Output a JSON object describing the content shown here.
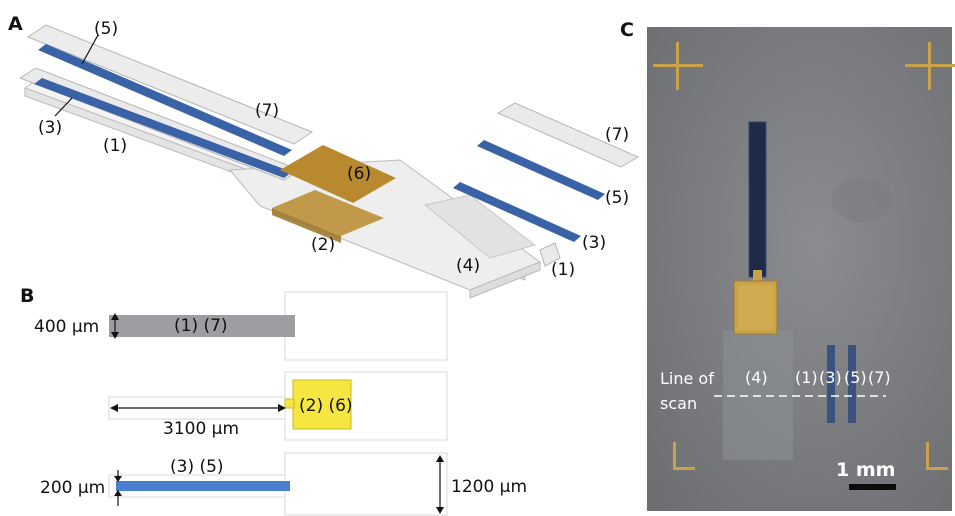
{
  "panels": {
    "a": "A",
    "b": "B",
    "c": "C"
  },
  "panel_a": {
    "labels": {
      "l5": "(5)",
      "l3": "(3)",
      "l7": "(7)",
      "l1": "(1)",
      "l6": "(6)",
      "l2": "(2)",
      "l4": "(4)",
      "r7": "(7)",
      "r5": "(5)",
      "r3": "(3)",
      "r1": "(1)"
    }
  },
  "panel_b": {
    "row1": {
      "dim": "400 µm",
      "label": "(1) (7)"
    },
    "row2": {
      "dim": "3100 µm",
      "label": "(2) (6)"
    },
    "row3": {
      "dim": "200 µm",
      "label": "(3) (5)",
      "height": "1200 µm"
    }
  },
  "panel_c": {
    "scan_label_1": "Line of",
    "scan_label_2": "scan",
    "l4": "(4)",
    "l1": "(1)",
    "l3": "(3)",
    "l5": "(5)",
    "l7": "(7)",
    "scalebar": "1 mm"
  },
  "colors": {
    "blue": "#3a62a6",
    "gold": "#b8892e",
    "yellow": "#f5e642",
    "gray": "#9e9ea2"
  }
}
